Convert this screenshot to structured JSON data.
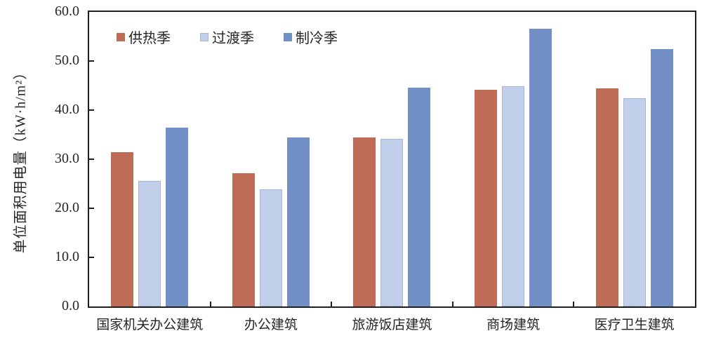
{
  "chart_data": {
    "type": "bar",
    "title": "",
    "ylabel": "单位面积用电量（kW·h/m²）",
    "xlabel": "",
    "ylim": [
      0,
      60
    ],
    "ytick_values": [
      0,
      10,
      20,
      30,
      40,
      50,
      60
    ],
    "ytick_labels": [
      "0.0",
      "10.0",
      "20.0",
      "30.0",
      "40.0",
      "50.0",
      "60.0"
    ],
    "categories": [
      "国家机关办公建筑",
      "办公建筑",
      "旅游饭店建筑",
      "商场建筑",
      "医疗卫生建筑"
    ],
    "series": [
      {
        "name": "供热季",
        "color": "#BE6C55",
        "border_color": "#BE6C55",
        "values": [
          31.5,
          27.1,
          34.4,
          44.1,
          44.4
        ]
      },
      {
        "name": "过渡季",
        "color": "#C2CFEA",
        "border_color": "#A6B4D8",
        "values": [
          25.6,
          23.9,
          34.1,
          44.8,
          42.4
        ]
      },
      {
        "name": "制冷季",
        "color": "#7390C6",
        "border_color": "#7390C6",
        "values": [
          36.4,
          34.4,
          44.6,
          56.6,
          52.5
        ]
      }
    ],
    "legend_position": "top-left-inside",
    "grid": false,
    "axis_color": "#1f1f1f",
    "text_color": "#262626"
  }
}
